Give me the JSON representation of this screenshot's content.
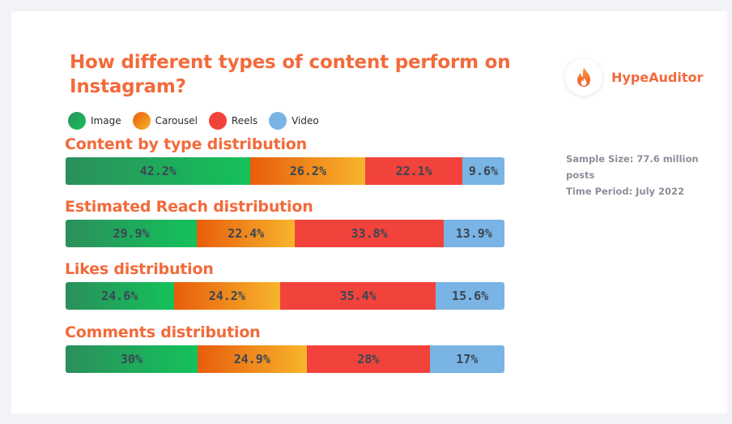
{
  "chart_data": {
    "type": "bar",
    "orientation": "horizontal-stacked-100",
    "title": "How different types of content perform on Instagram?",
    "legend": {
      "placement": "top-left",
      "entries": [
        "Image",
        "Carousel",
        "Reels",
        "Video"
      ]
    },
    "series_keys": [
      "image",
      "carousel",
      "reels",
      "video"
    ],
    "charts": [
      {
        "title": "Content by type distribution",
        "values": [
          42.2,
          26.2,
          22.1,
          9.6
        ],
        "labels": [
          "42.2%",
          "26.2%",
          "22.1%",
          "9.6%"
        ]
      },
      {
        "title": "Estimated Reach distribution",
        "values": [
          29.9,
          22.4,
          33.8,
          13.9
        ],
        "labels": [
          "29.9%",
          "22.4%",
          "33.8%",
          "13.9%"
        ]
      },
      {
        "title": "Likes distribution",
        "values": [
          24.6,
          24.2,
          35.4,
          15.6
        ],
        "labels": [
          "24.6%",
          "24.2%",
          "35.4%",
          "15.6%"
        ]
      },
      {
        "title": "Comments distribution",
        "values": [
          30,
          24.9,
          28,
          17
        ],
        "labels": [
          "30%",
          "24.9%",
          "28%",
          "17%"
        ]
      }
    ],
    "colors": {
      "image": "#19b95a",
      "carousel": "#f08a1e",
      "reels": "#f1433b",
      "video": "#79b4e4"
    }
  },
  "brand": {
    "name": "HypeAuditor",
    "icon": "flame-icon",
    "color": "#f26a3b"
  },
  "meta": {
    "sample_size": "Sample Size: 77.6 million posts",
    "time_period": "Time Period: July 2022"
  }
}
